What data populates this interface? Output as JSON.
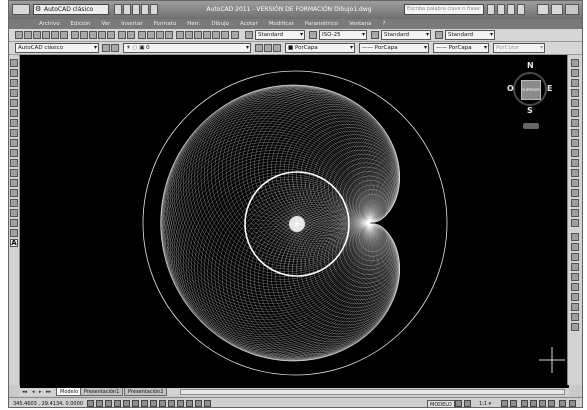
{
  "window": {
    "workspace": "AutoCAD clásico",
    "title": "AutoCAD 2011 - VERSIÓN DE FORMACIÓN    Dibujo1.dwg",
    "help_placeholder": "Escriba palabra clave o frase"
  },
  "menu": [
    "Archivo",
    "Edición",
    "Ver",
    "Insertar",
    "Formato",
    "Herr.",
    "Dibujo",
    "Acotar",
    "Modificar",
    "Paramétrico",
    "Ventana",
    "?"
  ],
  "styles_toolbar": {
    "text_style": "Standard",
    "dim_style": "ISO-25",
    "table_style": "Standard",
    "mleader_style": "Standard"
  },
  "layers_toolbar": {
    "workspace": "AutoCAD clásico",
    "layer": "0",
    "color": "PorCapa",
    "linetype": "PorCapa",
    "lineweight": "PorCapa",
    "plotstyle": "PorColor"
  },
  "viewcube": {
    "north": "N",
    "south": "S",
    "east": "E",
    "west": "O",
    "face": "SUPERIOR"
  },
  "tabs": [
    "Modelo",
    "Presentación1",
    "Presentación2"
  ],
  "tab_nav": [
    "◂◂",
    "◂",
    "▸",
    "▸▸"
  ],
  "status": {
    "coords": "345.4603 , 29.4134, 0.0000",
    "model": "MODELO",
    "scale": "1:1 ▾"
  },
  "colors": {
    "canvas": "#000000",
    "drawing": "#ffffff",
    "chrome": "#c9c9c9"
  }
}
